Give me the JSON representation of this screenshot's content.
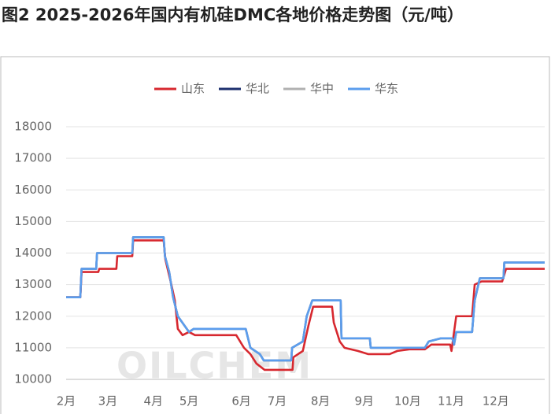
{
  "chart_data": {
    "type": "line",
    "title": "图2  2025-2026年国内有机硅DMC各地价格走势图（元/吨）",
    "watermark": "OILCHEM",
    "xlim": [
      2,
      13.14
    ],
    "ylim": [
      10000,
      18000
    ],
    "yticks": [
      10000,
      11000,
      12000,
      13000,
      14000,
      15000,
      16000,
      17000,
      18000
    ],
    "xticks": [
      {
        "value": 2,
        "label": "2月"
      },
      {
        "value": 2.97,
        "label": "3月"
      },
      {
        "value": 4.03,
        "label": "4月"
      },
      {
        "value": 4.86,
        "label": "5月"
      },
      {
        "value": 6.08,
        "label": "6月"
      },
      {
        "value": 6.91,
        "label": "7月"
      },
      {
        "value": 7.92,
        "label": "8月"
      },
      {
        "value": 8.94,
        "label": "9月"
      },
      {
        "value": 9.95,
        "label": "10月"
      },
      {
        "value": 10.96,
        "label": "11月"
      },
      {
        "value": 12,
        "label": "12月"
      }
    ],
    "grid": true,
    "legend": "top",
    "series": [
      {
        "name": "山东",
        "color": "#d7282f",
        "x": [
          2.0,
          2.33,
          2.36,
          2.75,
          2.77,
          3.17,
          3.19,
          3.54,
          3.56,
          4.27,
          4.31,
          4.45,
          4.53,
          4.6,
          4.71,
          4.86,
          5.0,
          5.96,
          6.14,
          6.29,
          6.43,
          6.62,
          7.27,
          7.29,
          7.51,
          7.64,
          7.75,
          8.19,
          8.23,
          8.37,
          8.48,
          8.79,
          9.03,
          9.53,
          9.71,
          9.99,
          10.35,
          10.5,
          10.94,
          10.97,
          11.08,
          11.45,
          11.51,
          11.67,
          12.15,
          12.24,
          13.14
        ],
        "values": [
          12600,
          12600,
          13400,
          13400,
          13500,
          13500,
          13900,
          13900,
          14400,
          14400,
          13800,
          13000,
          12500,
          11600,
          11400,
          11500,
          11400,
          11400,
          11000,
          10800,
          10500,
          10300,
          10300,
          10700,
          10900,
          11700,
          12300,
          12300,
          11800,
          11200,
          11000,
          10900,
          10800,
          10800,
          10900,
          10950,
          10950,
          11100,
          11100,
          10900,
          12000,
          12000,
          13000,
          13100,
          13100,
          13500,
          13500
        ]
      },
      {
        "name": "华北",
        "color": "#1c2f6e",
        "x": [
          2.0,
          2.33,
          2.36,
          2.7,
          2.72,
          3.54,
          3.56,
          4.27,
          4.3,
          4.4,
          4.49,
          4.6,
          4.86,
          4.97,
          6.18,
          6.29,
          6.51,
          6.6,
          7.24,
          7.26,
          7.51,
          7.6,
          7.73,
          8.39,
          8.41,
          9.07,
          9.09,
          10.35,
          10.44,
          10.72,
          10.99,
          11.03,
          11.08,
          11.45,
          11.51,
          11.63,
          12.18,
          12.2,
          13.14
        ],
        "values": [
          12600,
          12600,
          13500,
          13500,
          14000,
          14000,
          14500,
          14500,
          13900,
          13400,
          12600,
          12000,
          11500,
          11600,
          11600,
          11000,
          10800,
          10600,
          10600,
          11000,
          11200,
          12000,
          12500,
          12500,
          11300,
          11300,
          11000,
          11000,
          11200,
          11300,
          11300,
          11100,
          11500,
          11500,
          12500,
          13200,
          13200,
          13700,
          13700
        ]
      },
      {
        "name": "华中",
        "color": "#b0b0b0",
        "x": [
          2.0,
          2.33,
          2.36,
          2.7,
          2.72,
          3.54,
          3.56,
          4.27,
          4.3,
          4.4,
          4.49,
          4.6,
          4.86,
          4.97,
          6.18,
          6.29,
          6.51,
          6.6,
          7.24,
          7.26,
          7.51,
          7.6,
          7.73,
          8.39,
          8.41,
          9.07,
          9.09,
          10.35,
          10.44,
          10.72,
          10.99,
          11.03,
          11.08,
          11.45,
          11.51,
          11.63,
          12.18,
          12.2,
          13.14
        ],
        "values": [
          12600,
          12600,
          13500,
          13500,
          14000,
          14000,
          14500,
          14500,
          13900,
          13400,
          12600,
          12000,
          11500,
          11600,
          11600,
          11000,
          10800,
          10600,
          10600,
          11000,
          11200,
          12000,
          12500,
          12500,
          11300,
          11300,
          11000,
          11000,
          11200,
          11300,
          11300,
          11100,
          11500,
          11500,
          12500,
          13200,
          13200,
          13700,
          13700
        ]
      },
      {
        "name": "华东",
        "color": "#5b9ded",
        "x": [
          2.0,
          2.33,
          2.36,
          2.7,
          2.72,
          3.54,
          3.56,
          4.27,
          4.3,
          4.4,
          4.49,
          4.6,
          4.86,
          4.97,
          6.18,
          6.29,
          6.51,
          6.6,
          7.24,
          7.26,
          7.51,
          7.6,
          7.73,
          8.39,
          8.41,
          9.07,
          9.09,
          10.35,
          10.44,
          10.72,
          10.99,
          11.03,
          11.08,
          11.45,
          11.51,
          11.63,
          12.18,
          12.2,
          13.14
        ],
        "values": [
          12600,
          12600,
          13500,
          13500,
          14000,
          14000,
          14500,
          14500,
          13900,
          13400,
          12600,
          12000,
          11500,
          11600,
          11600,
          11000,
          10800,
          10600,
          10600,
          11000,
          11200,
          12000,
          12500,
          12500,
          11300,
          11300,
          11000,
          11000,
          11200,
          11300,
          11300,
          11100,
          11500,
          11500,
          12500,
          13200,
          13200,
          13700,
          13700
        ]
      }
    ]
  }
}
